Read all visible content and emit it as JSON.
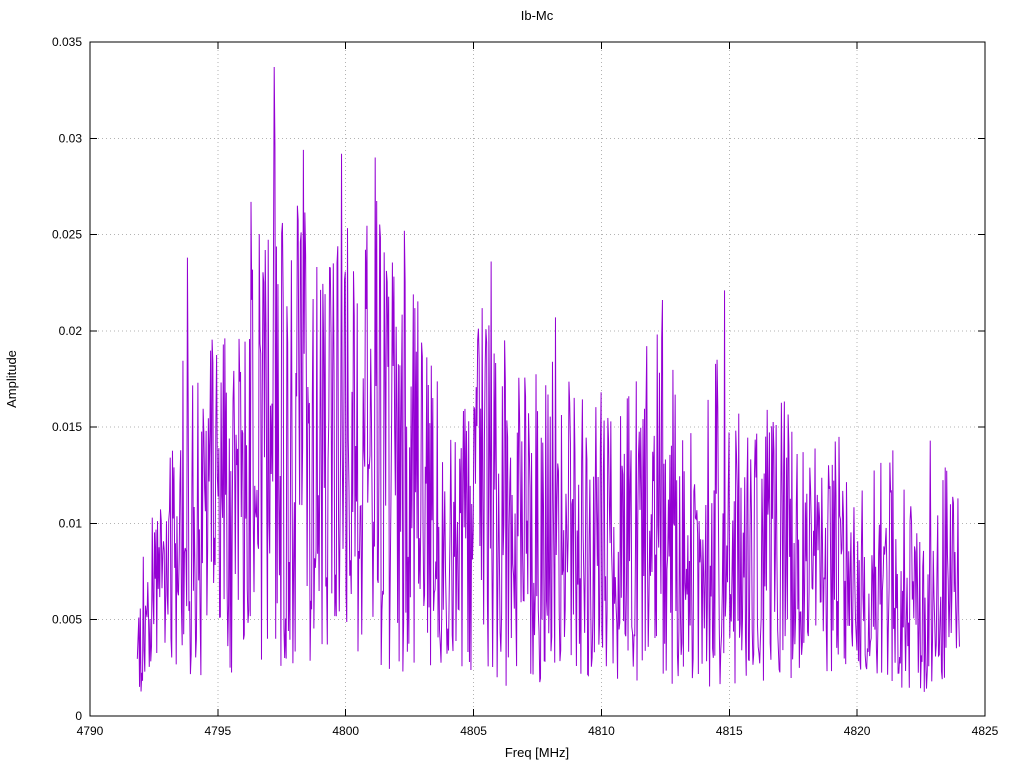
{
  "chart_data": {
    "type": "line",
    "title": "Ib-Mc",
    "xlabel": "Freq [MHz]",
    "ylabel": "Amplitude",
    "xlim": [
      4790,
      4825
    ],
    "ylim": [
      0,
      0.035
    ],
    "x_ticks": [
      4790,
      4795,
      4800,
      4805,
      4810,
      4815,
      4820,
      4825
    ],
    "x_tick_labels": [
      "4790",
      "4795",
      "4800",
      "4805",
      "4810",
      "4815",
      "4820",
      "4825"
    ],
    "y_ticks": [
      0,
      0.005,
      0.01,
      0.015,
      0.02,
      0.025,
      0.03,
      0.035
    ],
    "y_tick_labels": [
      "0",
      "0.005",
      "0.01",
      "0.015",
      "0.02",
      "0.025",
      "0.03",
      "0.035"
    ],
    "grid": "dotted",
    "grid_color": "#b3b3b3",
    "border_color": "#000000",
    "legend": "none",
    "series": [
      {
        "name": "Ib-Mc",
        "color": "#9400d3",
        "style": "noisy-spectrum-line"
      }
    ],
    "x_range_data": [
      4791.85,
      4824.0
    ],
    "envelope_high": [
      [
        4791.85,
        0.004
      ],
      [
        4792.2,
        0.011
      ],
      [
        4792.8,
        0.011
      ],
      [
        4793.4,
        0.016
      ],
      [
        4793.8,
        0.0238
      ],
      [
        4794.3,
        0.018
      ],
      [
        4795.0,
        0.0203
      ],
      [
        4795.7,
        0.0196
      ],
      [
        4796.3,
        0.0267
      ],
      [
        4797.0,
        0.026
      ],
      [
        4797.2,
        0.0337
      ],
      [
        4797.7,
        0.026
      ],
      [
        4798.1,
        0.0265
      ],
      [
        4798.35,
        0.0294
      ],
      [
        4798.8,
        0.0252
      ],
      [
        4799.3,
        0.0237
      ],
      [
        4799.85,
        0.0292
      ],
      [
        4800.4,
        0.022
      ],
      [
        4801.15,
        0.029
      ],
      [
        4801.7,
        0.0246
      ],
      [
        4802.3,
        0.0252
      ],
      [
        4803.0,
        0.0205
      ],
      [
        4803.5,
        0.0213
      ],
      [
        4804.2,
        0.0135
      ],
      [
        4804.8,
        0.019
      ],
      [
        4805.7,
        0.0236
      ],
      [
        4806.5,
        0.0175
      ],
      [
        4807.3,
        0.0187
      ],
      [
        4808.2,
        0.0207
      ],
      [
        4809.0,
        0.0189
      ],
      [
        4809.7,
        0.0155
      ],
      [
        4810.3,
        0.0195
      ],
      [
        4811.0,
        0.0168
      ],
      [
        4811.7,
        0.0193
      ],
      [
        4812.4,
        0.0216
      ],
      [
        4813.2,
        0.0145
      ],
      [
        4814.0,
        0.0152
      ],
      [
        4814.8,
        0.0221
      ],
      [
        4815.5,
        0.0152
      ],
      [
        4816.2,
        0.0165
      ],
      [
        4816.9,
        0.0173
      ],
      [
        4817.6,
        0.0155
      ],
      [
        4818.4,
        0.0142
      ],
      [
        4819.2,
        0.0147
      ],
      [
        4820.0,
        0.0136
      ],
      [
        4820.8,
        0.0135
      ],
      [
        4821.5,
        0.0142
      ],
      [
        4822.2,
        0.0105
      ],
      [
        4822.9,
        0.0085
      ],
      [
        4823.4,
        0.0143
      ],
      [
        4823.8,
        0.0113
      ],
      [
        4824.0,
        0.006
      ]
    ],
    "envelope_low": [
      [
        4791.85,
        0.0005
      ],
      [
        4792.5,
        0.003
      ],
      [
        4794.0,
        0.002
      ],
      [
        4800.0,
        0.003
      ],
      [
        4803.0,
        0.002
      ],
      [
        4806.0,
        0.0015
      ],
      [
        4810.0,
        0.002
      ],
      [
        4814.0,
        0.0015
      ],
      [
        4818.0,
        0.002
      ],
      [
        4821.0,
        0.0015
      ],
      [
        4823.0,
        0.001
      ],
      [
        4824.0,
        0.003
      ]
    ],
    "notable_peaks": [
      [
        4797.2,
        0.0337
      ],
      [
        4798.35,
        0.0294
      ],
      [
        4799.85,
        0.0292
      ],
      [
        4801.15,
        0.029
      ],
      [
        4796.3,
        0.0267
      ],
      [
        4798.1,
        0.0265
      ],
      [
        4793.8,
        0.0238
      ],
      [
        4805.7,
        0.0236
      ],
      [
        4802.3,
        0.0252
      ],
      [
        4814.8,
        0.0221
      ],
      [
        4812.4,
        0.0216
      ],
      [
        4808.2,
        0.0207
      ],
      [
        4822.85,
        0.0143
      ],
      [
        4823.95,
        0.0113
      ]
    ],
    "synthesis": {
      "seed": 73,
      "points": 1100,
      "bias_exponent": 1.2
    }
  }
}
